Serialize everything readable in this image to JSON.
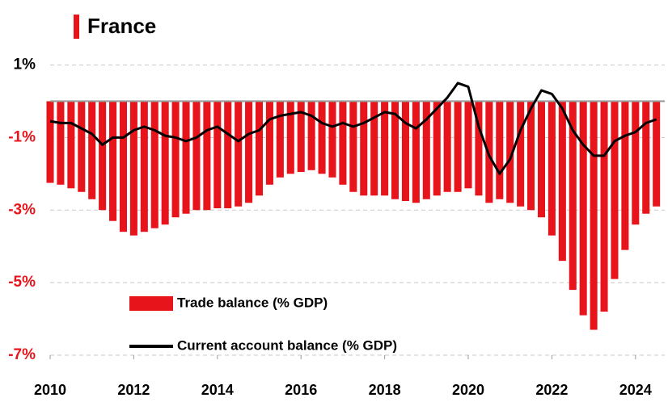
{
  "chart_data": {
    "type": "bar_line",
    "title": "France",
    "x": [
      2010,
      2010.25,
      2010.5,
      2010.75,
      2011,
      2011.25,
      2011.5,
      2011.75,
      2012,
      2012.25,
      2012.5,
      2012.75,
      2013,
      2013.25,
      2013.5,
      2013.75,
      2014,
      2014.25,
      2014.5,
      2014.75,
      2015,
      2015.25,
      2015.5,
      2015.75,
      2016,
      2016.25,
      2016.5,
      2016.75,
      2017,
      2017.25,
      2017.5,
      2017.75,
      2018,
      2018.25,
      2018.5,
      2018.75,
      2019,
      2019.25,
      2019.5,
      2019.75,
      2020,
      2020.25,
      2020.5,
      2020.75,
      2021,
      2021.25,
      2021.5,
      2021.75,
      2022,
      2022.25,
      2022.5,
      2022.75,
      2023,
      2023.25,
      2023.5,
      2023.75,
      2024,
      2024.25,
      2024.5
    ],
    "series": [
      {
        "name": "Trade balance  (% GDP)",
        "kind": "bar",
        "color": "#e8141b",
        "values": [
          -2.25,
          -2.3,
          -2.4,
          -2.5,
          -2.7,
          -3.0,
          -3.3,
          -3.6,
          -3.7,
          -3.6,
          -3.5,
          -3.4,
          -3.2,
          -3.1,
          -3.0,
          -3.0,
          -2.95,
          -2.95,
          -2.9,
          -2.8,
          -2.6,
          -2.3,
          -2.1,
          -2.0,
          -1.95,
          -1.9,
          -2.0,
          -2.1,
          -2.3,
          -2.5,
          -2.6,
          -2.6,
          -2.6,
          -2.7,
          -2.75,
          -2.8,
          -2.7,
          -2.6,
          -2.5,
          -2.5,
          -2.4,
          -2.6,
          -2.8,
          -2.7,
          -2.8,
          -2.9,
          -3.0,
          -3.2,
          -3.7,
          -4.4,
          -5.2,
          -5.9,
          -6.3,
          -5.8,
          -4.9,
          -4.1,
          -3.4,
          -3.1,
          -2.9
        ]
      },
      {
        "name": "Current account balance (% GDP)",
        "kind": "line",
        "color": "#000000",
        "values": [
          -0.55,
          -0.6,
          -0.6,
          -0.75,
          -0.9,
          -1.2,
          -1.0,
          -1.0,
          -0.8,
          -0.7,
          -0.8,
          -0.95,
          -1.0,
          -1.1,
          -1.0,
          -0.8,
          -0.7,
          -0.9,
          -1.1,
          -0.9,
          -0.8,
          -0.5,
          -0.4,
          -0.35,
          -0.3,
          -0.4,
          -0.6,
          -0.7,
          -0.6,
          -0.7,
          -0.6,
          -0.45,
          -0.3,
          -0.35,
          -0.6,
          -0.75,
          -0.5,
          -0.2,
          0.1,
          0.5,
          0.4,
          -0.7,
          -1.5,
          -2.0,
          -1.6,
          -0.8,
          -0.2,
          0.3,
          0.2,
          -0.2,
          -0.8,
          -1.2,
          -1.5,
          -1.5,
          -1.1,
          -0.95,
          -0.85,
          -0.6,
          -0.5
        ]
      }
    ],
    "xlim": [
      2010,
      2024.7
    ],
    "xticks": [
      2010,
      2012,
      2014,
      2016,
      2018,
      2020,
      2022,
      2024
    ],
    "ylim": [
      -7,
      1.3
    ],
    "yticks": [
      {
        "value": 1,
        "label": "1%"
      },
      {
        "value": -1,
        "label": "-1%"
      },
      {
        "value": -3,
        "label": "-3%"
      },
      {
        "value": -5,
        "label": "-5%"
      },
      {
        "value": -7,
        "label": "-7%"
      }
    ],
    "grid": true
  }
}
